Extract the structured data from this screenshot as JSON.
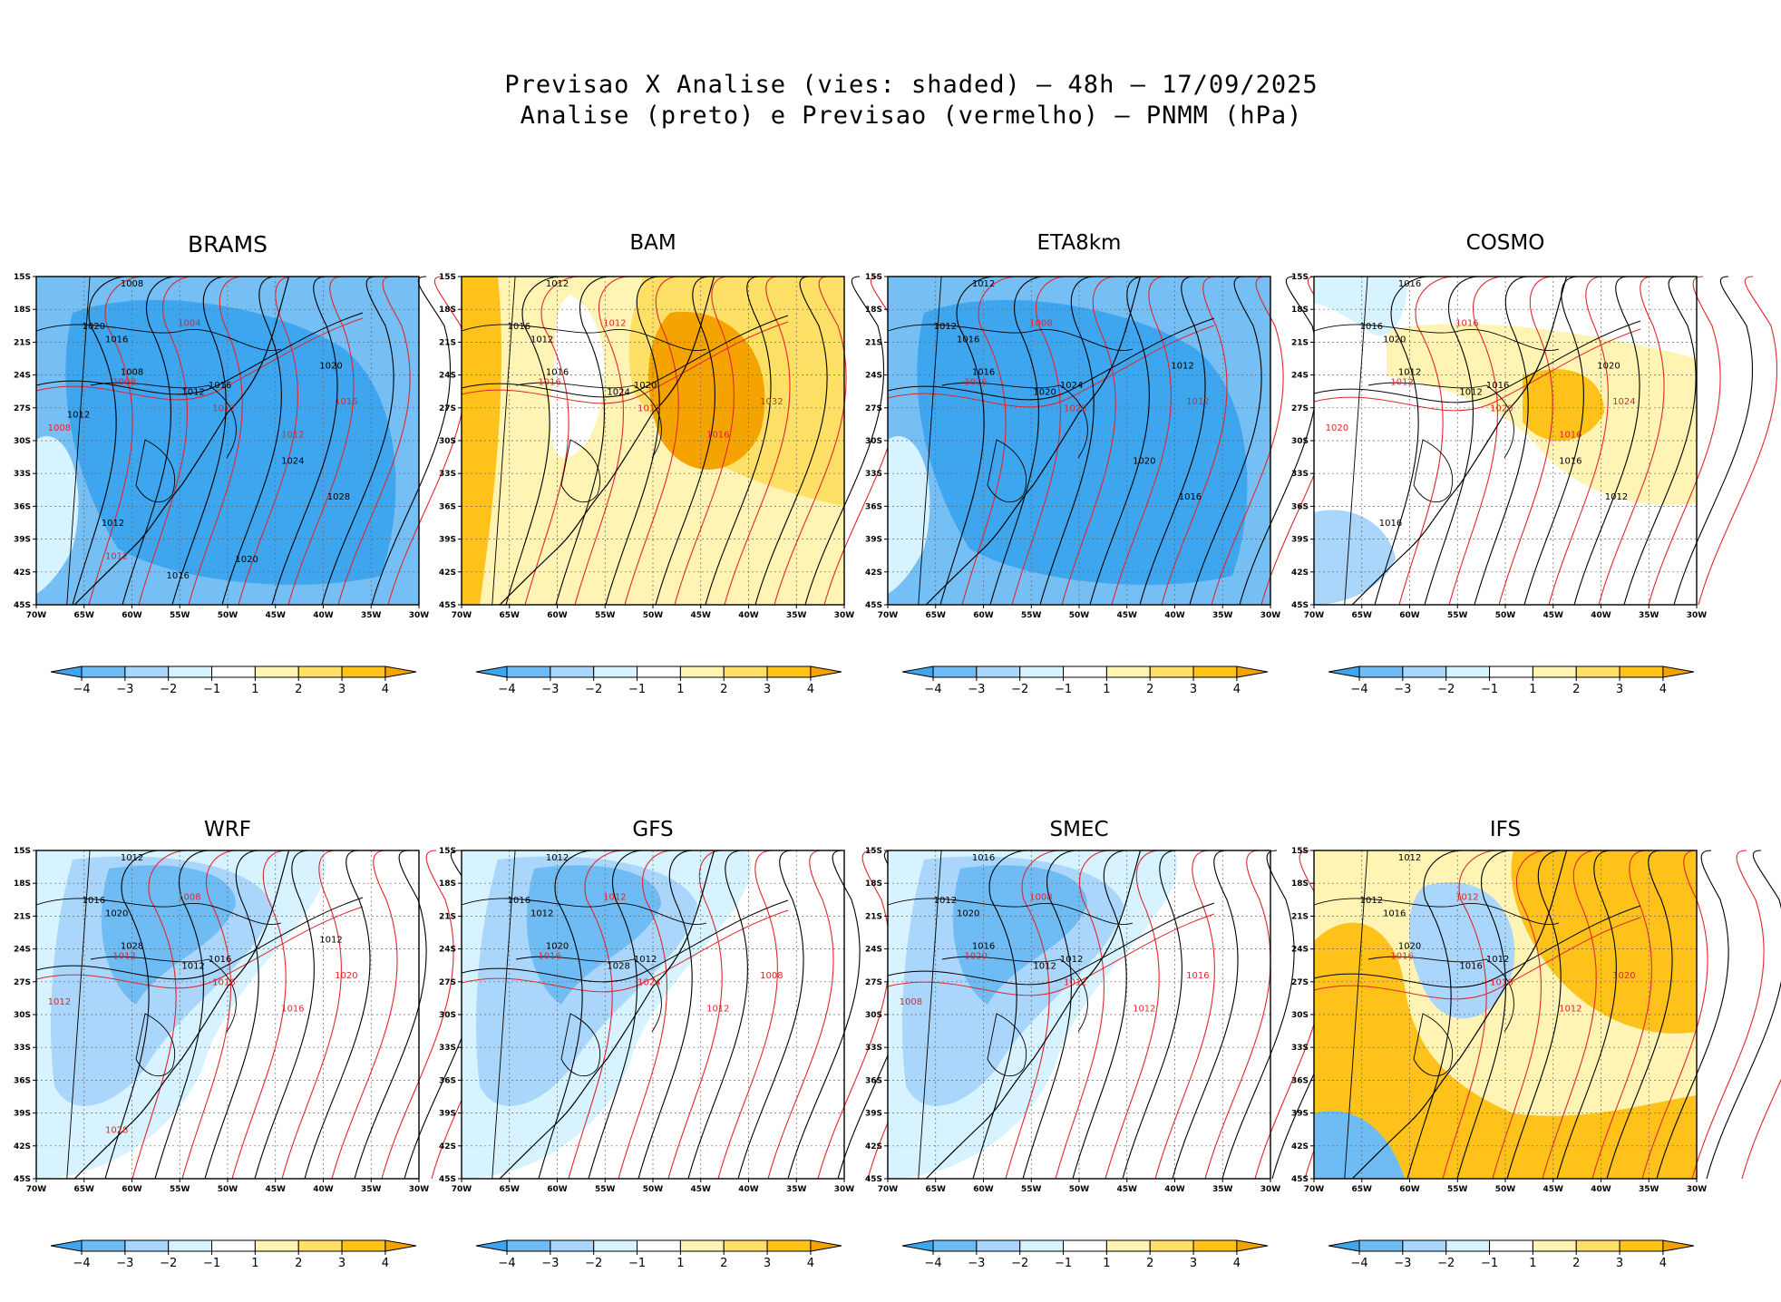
{
  "figure": {
    "title_line1": "Previsao X Analise (vies: shaded) — 48h — 17/09/2025",
    "title_line2": "Analise (preto) e Previsao (vermelho) — PNMM (hPa)"
  },
  "axes": {
    "lat_ticks": [
      "15S",
      "18S",
      "21S",
      "24S",
      "27S",
      "30S",
      "33S",
      "36S",
      "39S",
      "42S",
      "45S"
    ],
    "lon_ticks": [
      "70W",
      "65W",
      "60W",
      "55W",
      "50W",
      "45W",
      "40W",
      "35W",
      "30W"
    ]
  },
  "colorbar": {
    "ticks": [
      "−4",
      "−3",
      "−2",
      "−1",
      "1",
      "2",
      "3",
      "4"
    ],
    "colors": [
      "#3ea5ef",
      "#6fbcf4",
      "#a9d6fa",
      "#d6f3ff",
      "#ffffff",
      "#fff4b3",
      "#ffe066",
      "#ffc21a",
      "#f5a300"
    ]
  },
  "colors": {
    "analysis_contour": "#000000",
    "forecast_contour": "#e0262c",
    "negative_bias": "#4aa8ee",
    "positive_bias": "#f5a623"
  },
  "panels": [
    {
      "model": "BRAMS",
      "bias": "negative",
      "labels_black": [
        "1008",
        "1020",
        "1016",
        "1008",
        "1012",
        "1016",
        "1020",
        "1024",
        "1028",
        "1012",
        "1020",
        "1016",
        "1012"
      ],
      "labels_red": [
        "1004",
        "1008",
        "1012",
        "1016",
        "1012",
        "1008",
        "1012"
      ]
    },
    {
      "model": "BAM",
      "bias": "positive",
      "labels_black": [
        "1012",
        "1016",
        "1012",
        "1016",
        "1024",
        "1020"
      ],
      "labels_red": [
        "1012",
        "1016",
        "1012",
        "1032",
        "1016"
      ]
    },
    {
      "model": "ETA8km",
      "bias": "negative",
      "labels_black": [
        "1012",
        "1012",
        "1016",
        "1016",
        "1020",
        "1024",
        "1012",
        "1020",
        "1016"
      ],
      "labels_red": [
        "1008",
        "1016",
        "1020",
        "1012"
      ]
    },
    {
      "model": "COSMO",
      "bias": "mixed",
      "labels_black": [
        "1016",
        "1016",
        "1020",
        "1012",
        "1012",
        "1016",
        "1020",
        "1016",
        "1012",
        "1016"
      ],
      "labels_red": [
        "1016",
        "1012",
        "1020",
        "1024",
        "1016",
        "1020"
      ]
    },
    {
      "model": "WRF",
      "bias": "negative",
      "labels_black": [
        "1012",
        "1016",
        "1020",
        "1028",
        "1012",
        "1016",
        "1012"
      ],
      "labels_red": [
        "1008",
        "1012",
        "1016",
        "1020",
        "1016",
        "1012",
        "1028"
      ]
    },
    {
      "model": "GFS",
      "bias": "negative",
      "labels_black": [
        "1012",
        "1016",
        "1012",
        "1020",
        "1028",
        "1012"
      ],
      "labels_red": [
        "1012",
        "1016",
        "1024",
        "1008",
        "1012"
      ]
    },
    {
      "model": "SMEC",
      "bias": "negative",
      "labels_black": [
        "1016",
        "1012",
        "1020",
        "1016",
        "1012",
        "1012"
      ],
      "labels_red": [
        "1008",
        "1020",
        "1012",
        "1016",
        "1012",
        "1008"
      ]
    },
    {
      "model": "IFS",
      "bias": "positive",
      "labels_black": [
        "1012",
        "1012",
        "1016",
        "1020",
        "1016",
        "1012"
      ],
      "labels_red": [
        "1012",
        "1016",
        "1016",
        "1020",
        "1012"
      ]
    }
  ]
}
